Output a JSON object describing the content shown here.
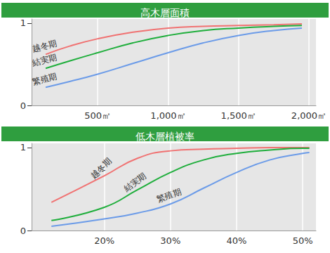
{
  "chart_data": [
    {
      "type": "line",
      "title": "高木層面積",
      "x": [
        130,
        300,
        500,
        750,
        1000,
        1250,
        1500,
        1750,
        1950
      ],
      "series": [
        {
          "name": "越冬期",
          "color": "#f07272",
          "values": [
            0.62,
            0.72,
            0.81,
            0.89,
            0.94,
            0.96,
            0.97,
            0.98,
            0.99
          ]
        },
        {
          "name": "結実期",
          "color": "#1fae3c",
          "values": [
            0.45,
            0.54,
            0.64,
            0.76,
            0.85,
            0.91,
            0.94,
            0.96,
            0.97
          ]
        },
        {
          "name": "繁殖期",
          "color": "#6b9be8",
          "values": [
            0.22,
            0.29,
            0.38,
            0.51,
            0.64,
            0.76,
            0.85,
            0.91,
            0.94
          ]
        }
      ],
      "xlim": [
        30,
        2050
      ],
      "xticks": [
        {
          "value": 500,
          "label": "500㎡"
        },
        {
          "value": 1000,
          "label": "1,000㎡"
        },
        {
          "value": 1500,
          "label": "1,500㎡"
        },
        {
          "value": 2000,
          "label": "2,000㎡"
        }
      ],
      "ylim": [
        0,
        1.05
      ],
      "yticks": [
        0,
        1
      ],
      "grid": true
    },
    {
      "type": "line",
      "title": "低木層植被率",
      "x": [
        12,
        20,
        25,
        30,
        35,
        40,
        45,
        50,
        51
      ],
      "series": [
        {
          "name": "越冬期",
          "color": "#f07272",
          "values": [
            0.34,
            0.66,
            0.87,
            0.96,
            0.98,
            0.99,
            1.0,
            1.0,
            1.0
          ]
        },
        {
          "name": "結実期",
          "color": "#1fae3c",
          "values": [
            0.12,
            0.28,
            0.49,
            0.7,
            0.85,
            0.93,
            0.97,
            0.99,
            0.99
          ]
        },
        {
          "name": "繁殖期",
          "color": "#6b9be8",
          "values": [
            0.05,
            0.14,
            0.21,
            0.32,
            0.51,
            0.7,
            0.85,
            0.93,
            0.94
          ]
        }
      ],
      "xlim": [
        9,
        52
      ],
      "xticks": [
        {
          "value": 20,
          "label": "20%"
        },
        {
          "value": 30,
          "label": "30%"
        },
        {
          "value": 40,
          "label": "40%"
        },
        {
          "value": 50,
          "label": "50%"
        }
      ],
      "ylim": [
        0,
        1.05
      ],
      "yticks": [
        0,
        1
      ],
      "grid": true
    }
  ]
}
